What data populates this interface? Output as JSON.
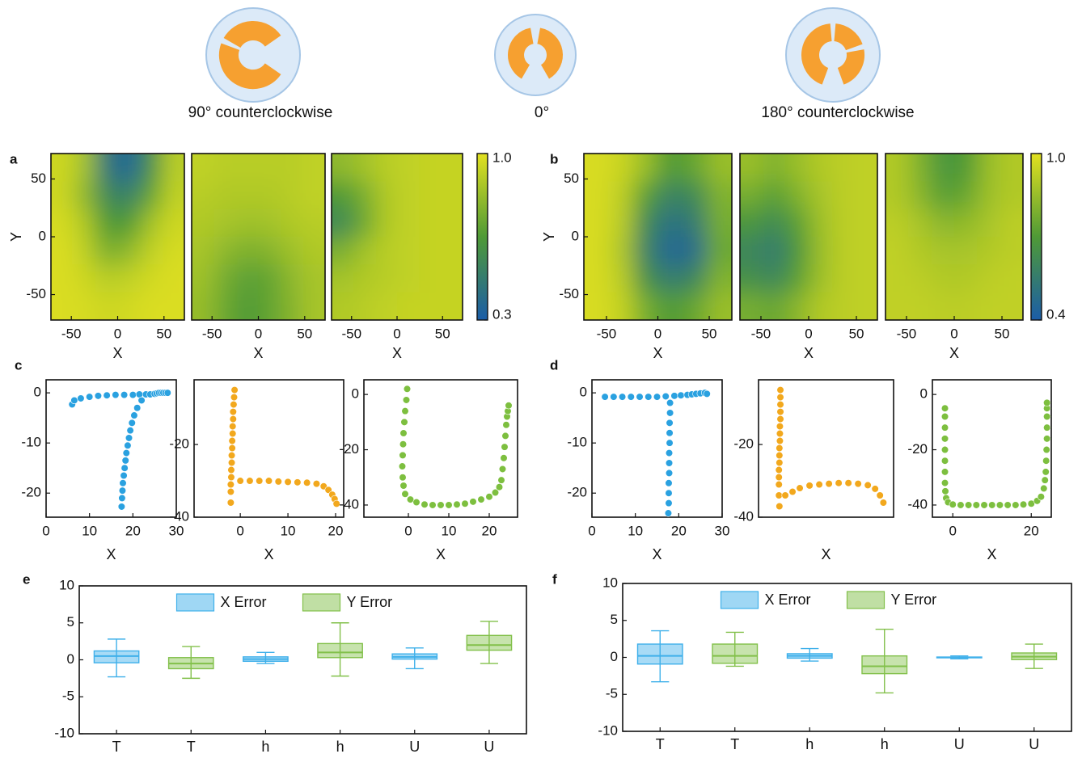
{
  "figure": {
    "captions": [
      "90° counterclockwise",
      "0°",
      "180° counterclockwise"
    ]
  },
  "chart_data": [
    {
      "type": "heatmap",
      "panel": "a",
      "xlabel": "X",
      "ylabel": "Y",
      "xlim": [
        -72,
        72
      ],
      "ylim": [
        -72,
        72
      ],
      "xticks": [
        -50,
        0,
        50
      ],
      "yticks": [
        -50,
        0,
        50
      ],
      "colors": [
        "#1b5da8",
        "#4f9a36",
        "#e2e120"
      ],
      "colorbar": {
        "lim": [
          0.3,
          1
        ],
        "ticks": [
          0.3,
          {
            "value": 1,
            "label": "1.0"
          }
        ]
      },
      "values": [
        [
          [
            0.95,
            0.85,
            0.45,
            0.35,
            0.6,
            0.9
          ],
          [
            0.95,
            0.8,
            0.55,
            0.5,
            0.7,
            0.92
          ],
          [
            0.97,
            0.88,
            0.65,
            0.65,
            0.85,
            0.95
          ],
          [
            0.98,
            0.92,
            0.75,
            0.8,
            0.92,
            0.97
          ],
          [
            0.98,
            0.95,
            0.9,
            0.92,
            0.96,
            0.98
          ],
          [
            0.98,
            0.97,
            0.95,
            0.96,
            0.98,
            0.98
          ]
        ],
        [
          [
            0.92,
            0.9,
            0.9,
            0.9,
            0.9,
            0.92
          ],
          [
            0.9,
            0.88,
            0.88,
            0.88,
            0.9,
            0.92
          ],
          [
            0.88,
            0.86,
            0.84,
            0.85,
            0.88,
            0.9
          ],
          [
            0.86,
            0.8,
            0.76,
            0.78,
            0.84,
            0.88
          ],
          [
            0.84,
            0.74,
            0.68,
            0.7,
            0.8,
            0.86
          ],
          [
            0.82,
            0.72,
            0.65,
            0.7,
            0.78,
            0.86
          ]
        ],
        [
          [
            0.8,
            0.85,
            0.9,
            0.92,
            0.93,
            0.93
          ],
          [
            0.65,
            0.75,
            0.88,
            0.92,
            0.93,
            0.93
          ],
          [
            0.55,
            0.72,
            0.88,
            0.92,
            0.93,
            0.93
          ],
          [
            0.75,
            0.85,
            0.9,
            0.92,
            0.93,
            0.93
          ],
          [
            0.85,
            0.88,
            0.9,
            0.92,
            0.93,
            0.93
          ],
          [
            0.88,
            0.9,
            0.92,
            0.93,
            0.93,
            0.93
          ]
        ]
      ]
    },
    {
      "type": "heatmap",
      "panel": "b",
      "xlabel": "X",
      "ylabel": "Y",
      "xlim": [
        -72,
        72
      ],
      "ylim": [
        -72,
        72
      ],
      "xticks": [
        -50,
        0,
        50
      ],
      "yticks": [
        -50,
        0,
        50
      ],
      "colors": [
        "#1b5da8",
        "#4f9a36",
        "#e2e120"
      ],
      "colorbar": {
        "lim": [
          0.4,
          1
        ],
        "ticks": [
          0.4,
          {
            "value": 1,
            "label": "1.0"
          }
        ]
      },
      "values": [
        [
          [
            0.98,
            0.95,
            0.85,
            0.7,
            0.75,
            0.85
          ],
          [
            0.98,
            0.93,
            0.72,
            0.58,
            0.62,
            0.8
          ],
          [
            0.98,
            0.92,
            0.62,
            0.5,
            0.55,
            0.78
          ],
          [
            0.98,
            0.9,
            0.58,
            0.45,
            0.48,
            0.76
          ],
          [
            0.98,
            0.92,
            0.65,
            0.55,
            0.6,
            0.8
          ],
          [
            0.98,
            0.94,
            0.78,
            0.7,
            0.75,
            0.85
          ]
        ],
        [
          [
            0.85,
            0.8,
            0.85,
            0.9,
            0.92,
            0.93
          ],
          [
            0.78,
            0.72,
            0.8,
            0.88,
            0.92,
            0.93
          ],
          [
            0.68,
            0.62,
            0.72,
            0.86,
            0.92,
            0.93
          ],
          [
            0.6,
            0.55,
            0.68,
            0.85,
            0.92,
            0.93
          ],
          [
            0.65,
            0.6,
            0.72,
            0.86,
            0.92,
            0.93
          ],
          [
            0.78,
            0.75,
            0.82,
            0.9,
            0.92,
            0.93
          ]
        ],
        [
          [
            0.9,
            0.8,
            0.68,
            0.7,
            0.85,
            0.9
          ],
          [
            0.9,
            0.82,
            0.72,
            0.75,
            0.86,
            0.9
          ],
          [
            0.92,
            0.88,
            0.82,
            0.83,
            0.88,
            0.92
          ],
          [
            0.93,
            0.9,
            0.88,
            0.88,
            0.9,
            0.92
          ],
          [
            0.93,
            0.92,
            0.9,
            0.9,
            0.92,
            0.93
          ],
          [
            0.93,
            0.93,
            0.92,
            0.92,
            0.93,
            0.93
          ]
        ]
      ]
    },
    {
      "type": "scatter",
      "panel": "c",
      "xlabel": "X",
      "plots": [
        {
          "color": "#2aa1e0",
          "xlim": [
            0,
            30
          ],
          "ylim": [
            -24.8,
            2.6
          ],
          "xticks": [
            0,
            10,
            20,
            30
          ],
          "yticks": [
            0,
            -10,
            -20
          ],
          "x": [
            6,
            6.5,
            8,
            10,
            12,
            14,
            16,
            18,
            20,
            21.5,
            23,
            24,
            25,
            25.5,
            26,
            26.5,
            27,
            27.5,
            28,
            22,
            21,
            20.3,
            19.8,
            19.4,
            19.1,
            18.8,
            18.5,
            18.3,
            18.1,
            17.9,
            17.7,
            17.6,
            17.5,
            17.4
          ],
          "y": [
            -2.3,
            -1.5,
            -1.1,
            -0.8,
            -0.6,
            -0.5,
            -0.4,
            -0.4,
            -0.4,
            -0.3,
            -0.3,
            -0.3,
            -0.2,
            -0.1,
            0,
            0,
            0,
            0,
            0,
            -1.5,
            -3,
            -4.5,
            -6,
            -7.5,
            -9,
            -10.5,
            -12,
            -13.5,
            -15,
            -16.5,
            -18,
            -19.5,
            -21,
            -22.7
          ]
        },
        {
          "color": "#f2a81d",
          "xlim": [
            -9.7,
            21.7
          ],
          "ylim": [
            -40,
            -2.2
          ],
          "xticks": [
            0,
            10,
            20
          ],
          "yticks": [
            -20,
            -40
          ],
          "x": [
            -1.2,
            -1.3,
            -1.4,
            -1.5,
            -1.5,
            -1.6,
            -1.6,
            -1.7,
            -1.7,
            -1.8,
            -1.8,
            -1.9,
            -1.9,
            -2,
            -2,
            -2,
            0,
            2,
            4,
            6,
            8,
            10,
            12,
            14,
            16,
            17.5,
            18.5,
            19.3,
            19.8,
            20.2
          ],
          "y": [
            -5,
            -7,
            -9,
            -11,
            -13,
            -15,
            -17,
            -19,
            -21,
            -23,
            -25,
            -27,
            -29,
            -31,
            -33,
            -36,
            -30,
            -30,
            -30,
            -30,
            -30.2,
            -30.3,
            -30.4,
            -30.5,
            -30.8,
            -31.5,
            -32.5,
            -33.8,
            -35,
            -36.3
          ]
        },
        {
          "color": "#7dbf3f",
          "xlim": [
            -11,
            27
          ],
          "ylim": [
            -44.4,
            5.3
          ],
          "xticks": [
            0,
            10,
            20
          ],
          "yticks": [
            0,
            -20,
            -40
          ],
          "x": [
            -0.3,
            -0.5,
            -0.8,
            -1,
            -1.2,
            -1.3,
            -1.4,
            -1.5,
            -1.4,
            -1.2,
            -0.8,
            0.5,
            2,
            4,
            6,
            8,
            10,
            12,
            14,
            16,
            18,
            20,
            21.5,
            22.5,
            23,
            23.3,
            23.6,
            23.8,
            24,
            24.2,
            24.4,
            24.6,
            24.8
          ],
          "y": [
            2,
            -2,
            -6,
            -10,
            -14,
            -18,
            -22,
            -26,
            -30,
            -33,
            -36,
            -38,
            -39,
            -39.8,
            -40,
            -40,
            -40,
            -39.8,
            -39.5,
            -38.8,
            -38,
            -37,
            -35.5,
            -33.5,
            -31,
            -27,
            -23,
            -19,
            -15,
            -11,
            -8,
            -6,
            -4
          ]
        }
      ]
    },
    {
      "type": "scatter",
      "panel": "d",
      "xlabel": "X",
      "plots": [
        {
          "color": "#2aa1e0",
          "xlim": [
            0,
            30
          ],
          "ylim": [
            -24.8,
            2.6
          ],
          "xticks": [
            0,
            10,
            20,
            30
          ],
          "yticks": [
            0,
            -10,
            -20
          ],
          "x": [
            3,
            5,
            7,
            9,
            11,
            13,
            15,
            17,
            19,
            20.5,
            22,
            23,
            24,
            25,
            26,
            26.5,
            18,
            18,
            17.9,
            17.9,
            17.9,
            17.8,
            17.8,
            17.8,
            17.7,
            17.7,
            17.7,
            17.6
          ],
          "y": [
            -0.8,
            -0.8,
            -0.8,
            -0.8,
            -0.8,
            -0.8,
            -0.8,
            -0.7,
            -0.6,
            -0.5,
            -0.4,
            -0.3,
            -0.2,
            -0.1,
            0,
            -0.2,
            -2,
            -4,
            -6,
            -8,
            -10,
            -12,
            -14,
            -16,
            -18,
            -20,
            -22,
            -24
          ]
        },
        {
          "color": "#f2a81d",
          "xlim": [
            -5.5,
            22.3
          ],
          "ylim": [
            -40,
            -2.2
          ],
          "yticks": [
            -20,
            -40
          ],
          "x": [
            -1,
            -1,
            -1,
            -1,
            -1,
            -1.1,
            -1.1,
            -1.1,
            -1.2,
            -1.2,
            -1.2,
            -1.3,
            -1.3,
            -1.3,
            -1.3,
            -1.2,
            0,
            1.5,
            3,
            5,
            7,
            9,
            11,
            13,
            15,
            17,
            18.5,
            19.5,
            20.2
          ],
          "y": [
            -5,
            -7,
            -9,
            -11,
            -13,
            -15,
            -17,
            -19,
            -21,
            -23,
            -25,
            -27,
            -29,
            -31,
            -34,
            -37,
            -34,
            -33,
            -32,
            -31.3,
            -31,
            -30.8,
            -30.6,
            -30.6,
            -30.8,
            -31.2,
            -32.2,
            -34,
            -36
          ]
        },
        {
          "color": "#7dbf3f",
          "xlim": [
            -5.2,
            25.1
          ],
          "ylim": [
            -44.4,
            5.3
          ],
          "xticks": [
            0,
            20
          ],
          "yticks": [
            0,
            -20,
            -40
          ],
          "x": [
            -2,
            -2,
            -2,
            -2,
            -2,
            -2,
            -2,
            -2,
            -1.9,
            -1.7,
            -1.2,
            0,
            2,
            4,
            6,
            8,
            10,
            12,
            14,
            16,
            18,
            20,
            21.5,
            22.5,
            23.2,
            23.5,
            23.7,
            23.8,
            23.9,
            24,
            24,
            24,
            24,
            24
          ],
          "y": [
            -5,
            -8,
            -12,
            -16,
            -20,
            -24,
            -28,
            -32,
            -35,
            -37.5,
            -39,
            -39.8,
            -40,
            -40,
            -40,
            -40,
            -40,
            -40,
            -40,
            -40,
            -39.8,
            -39.5,
            -38.5,
            -37,
            -34,
            -31,
            -28,
            -24,
            -20,
            -16,
            -12,
            -8,
            -5,
            -3
          ]
        }
      ]
    },
    {
      "type": "box",
      "panel": "e",
      "legend": "top",
      "categories": [
        "T",
        "T",
        "h",
        "h",
        "U",
        "U"
      ],
      "ylim": [
        -10,
        10
      ],
      "yticks": [
        -10,
        -5,
        0,
        5,
        10
      ],
      "series": [
        {
          "name": "X Error",
          "color": "#3fb0ea",
          "min": [
            -2.3,
            null,
            -0.5,
            null,
            -1.2,
            null
          ],
          "q1": [
            -0.4,
            null,
            -0.2,
            null,
            0.1,
            null
          ],
          "median": [
            0.5,
            null,
            0.1,
            null,
            0.4,
            null
          ],
          "q3": [
            1.2,
            null,
            0.4,
            null,
            0.8,
            null
          ],
          "max": [
            2.8,
            null,
            1,
            null,
            1.6,
            null
          ]
        },
        {
          "name": "Y Error",
          "color": "#82c04a",
          "min": [
            null,
            -2.5,
            null,
            -2.2,
            null,
            -0.5
          ],
          "q1": [
            null,
            -1.2,
            null,
            0.3,
            null,
            1.3
          ],
          "median": [
            null,
            -0.5,
            null,
            1,
            null,
            2
          ],
          "q3": [
            null,
            0.3,
            null,
            2.2,
            null,
            3.3
          ],
          "max": [
            null,
            1.8,
            null,
            5,
            null,
            5.2
          ]
        }
      ]
    },
    {
      "type": "box",
      "panel": "f",
      "legend": "top",
      "categories": [
        "T",
        "T",
        "h",
        "h",
        "U",
        "U"
      ],
      "ylim": [
        -10,
        10
      ],
      "yticks": [
        -10,
        -5,
        0,
        5,
        10
      ],
      "series": [
        {
          "name": "X Error",
          "color": "#3fb0ea",
          "min": [
            -3.3,
            null,
            -0.5,
            null,
            -0.2,
            null
          ],
          "q1": [
            -0.9,
            null,
            -0.1,
            null,
            -0.05,
            null
          ],
          "median": [
            0.2,
            null,
            0.2,
            null,
            0,
            null
          ],
          "q3": [
            1.8,
            null,
            0.5,
            null,
            0.05,
            null
          ],
          "max": [
            3.6,
            null,
            1.2,
            null,
            0.2,
            null
          ]
        },
        {
          "name": "Y Error",
          "color": "#82c04a",
          "min": [
            null,
            -1.2,
            null,
            -4.8,
            null,
            -1.5
          ],
          "q1": [
            null,
            -0.8,
            null,
            -2.2,
            null,
            -0.3
          ],
          "median": [
            null,
            0.2,
            null,
            -1.2,
            null,
            0.1
          ],
          "q3": [
            null,
            1.8,
            null,
            0.2,
            null,
            0.6
          ],
          "max": [
            null,
            3.4,
            null,
            3.8,
            null,
            1.8
          ]
        }
      ]
    }
  ]
}
